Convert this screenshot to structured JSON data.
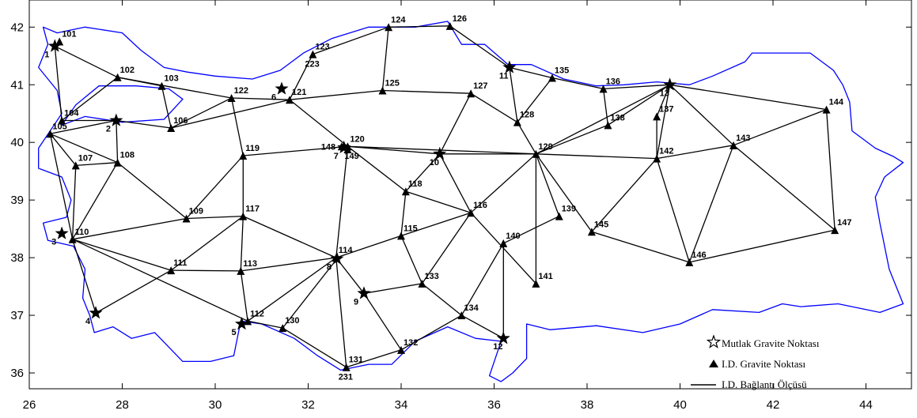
{
  "map": {
    "axes": {
      "x_ticks": [
        26,
        28,
        30,
        32,
        34,
        36,
        38,
        40,
        42,
        44
      ],
      "y_ticks": [
        36,
        37,
        38,
        39,
        40,
        41,
        42
      ],
      "xlim": [
        26,
        45
      ],
      "ylim": [
        35.8,
        42.5
      ]
    },
    "colors": {
      "coastline": "#0000ff",
      "lines": "#000000",
      "frame": "#000000"
    },
    "legend": {
      "absolute_label": "Mutlak Gravite Noktası",
      "relative_label": "I.D. Gravite Noktası",
      "connection_label": "I.D. Bağlantı Ölçüsü"
    },
    "absolute_points": [
      {
        "id": "1",
        "lon": 26.55,
        "lat": 41.67
      },
      {
        "id": "2",
        "lon": 27.87,
        "lat": 40.38
      },
      {
        "id": "3",
        "lon": 26.7,
        "lat": 38.42
      },
      {
        "id": "4",
        "lon": 27.43,
        "lat": 37.04
      },
      {
        "id": "5",
        "lon": 30.57,
        "lat": 36.85
      },
      {
        "id": "6",
        "lon": 31.43,
        "lat": 40.93
      },
      {
        "id": "7",
        "lon": 32.77,
        "lat": 39.91
      },
      {
        "id": "8",
        "lon": 32.62,
        "lat": 37.98
      },
      {
        "id": "9",
        "lon": 33.2,
        "lat": 37.38
      },
      {
        "id": "10",
        "lon": 34.83,
        "lat": 39.8
      },
      {
        "id": "11",
        "lon": 36.33,
        "lat": 41.3
      },
      {
        "id": "12",
        "lon": 36.2,
        "lat": 36.6
      },
      {
        "id": "13",
        "lon": 39.78,
        "lat": 41.0
      }
    ],
    "relative_points": [
      {
        "id": "101",
        "lon": 26.65,
        "lat": 41.75
      },
      {
        "id": "102",
        "lon": 27.9,
        "lat": 41.13
      },
      {
        "id": "103",
        "lon": 28.85,
        "lat": 40.98
      },
      {
        "id": "104",
        "lon": 26.7,
        "lat": 40.38
      },
      {
        "id": "105",
        "lon": 26.45,
        "lat": 40.15
      },
      {
        "id": "106",
        "lon": 29.05,
        "lat": 40.25
      },
      {
        "id": "107",
        "lon": 27.0,
        "lat": 39.6
      },
      {
        "id": "108",
        "lon": 27.9,
        "lat": 39.65
      },
      {
        "id": "109",
        "lon": 29.38,
        "lat": 38.68
      },
      {
        "id": "110",
        "lon": 26.93,
        "lat": 38.32
      },
      {
        "id": "111",
        "lon": 29.05,
        "lat": 37.78
      },
      {
        "id": "112",
        "lon": 30.7,
        "lat": 36.9
      },
      {
        "id": "113",
        "lon": 30.55,
        "lat": 37.77
      },
      {
        "id": "114",
        "lon": 32.6,
        "lat": 38.0
      },
      {
        "id": "115",
        "lon": 34.0,
        "lat": 38.38
      },
      {
        "id": "116",
        "lon": 35.5,
        "lat": 38.78
      },
      {
        "id": "117",
        "lon": 30.6,
        "lat": 38.72
      },
      {
        "id": "118",
        "lon": 34.1,
        "lat": 39.15
      },
      {
        "id": "119",
        "lon": 30.6,
        "lat": 39.77
      },
      {
        "id": "120",
        "lon": 32.85,
        "lat": 39.93
      },
      {
        "id": "121",
        "lon": 31.6,
        "lat": 40.74
      },
      {
        "id": "122",
        "lon": 30.35,
        "lat": 40.77
      },
      {
        "id": "123",
        "lon": 32.1,
        "lat": 41.53
      },
      {
        "id": "124",
        "lon": 33.73,
        "lat": 42.0
      },
      {
        "id": "125",
        "lon": 33.6,
        "lat": 40.9
      },
      {
        "id": "126",
        "lon": 35.05,
        "lat": 42.02
      },
      {
        "id": "127",
        "lon": 35.5,
        "lat": 40.85
      },
      {
        "id": "128",
        "lon": 36.5,
        "lat": 40.35
      },
      {
        "id": "129",
        "lon": 36.9,
        "lat": 39.8
      },
      {
        "id": "130",
        "lon": 31.45,
        "lat": 36.78
      },
      {
        "id": "131",
        "lon": 32.82,
        "lat": 36.1
      },
      {
        "id": "132",
        "lon": 34.0,
        "lat": 36.4
      },
      {
        "id": "133",
        "lon": 34.45,
        "lat": 37.55
      },
      {
        "id": "134",
        "lon": 35.3,
        "lat": 37.0
      },
      {
        "id": "135",
        "lon": 37.25,
        "lat": 41.12
      },
      {
        "id": "136",
        "lon": 38.35,
        "lat": 40.93
      },
      {
        "id": "137",
        "lon": 39.5,
        "lat": 40.45
      },
      {
        "id": "138",
        "lon": 38.45,
        "lat": 40.3
      },
      {
        "id": "139",
        "lon": 37.4,
        "lat": 38.72
      },
      {
        "id": "140",
        "lon": 36.2,
        "lat": 38.25
      },
      {
        "id": "141",
        "lon": 36.9,
        "lat": 37.55
      },
      {
        "id": "142",
        "lon": 39.5,
        "lat": 39.72
      },
      {
        "id": "143",
        "lon": 41.15,
        "lat": 39.95
      },
      {
        "id": "144",
        "lon": 43.15,
        "lat": 40.57
      },
      {
        "id": "145",
        "lon": 38.1,
        "lat": 38.45
      },
      {
        "id": "146",
        "lon": 40.2,
        "lat": 37.92
      },
      {
        "id": "147",
        "lon": 43.33,
        "lat": 38.48
      },
      {
        "id": "148",
        "lon": 32.72,
        "lat": 39.93
      },
      {
        "id": "149",
        "lon": 32.85,
        "lat": 39.88
      },
      {
        "id": "223",
        "lon": 32.1,
        "lat": 41.53
      },
      {
        "id": "231",
        "lon": 32.82,
        "lat": 36.1
      }
    ],
    "connections": [
      [
        "1",
        "102"
      ],
      [
        "1",
        "104"
      ],
      [
        "102",
        "103"
      ],
      [
        "102",
        "104"
      ],
      [
        "102",
        "122"
      ],
      [
        "103",
        "106"
      ],
      [
        "104",
        "2"
      ],
      [
        "2",
        "105"
      ],
      [
        "2",
        "106"
      ],
      [
        "2",
        "108"
      ],
      [
        "105",
        "107"
      ],
      [
        "105",
        "108"
      ],
      [
        "105",
        "110"
      ],
      [
        "106",
        "122"
      ],
      [
        "106",
        "121"
      ],
      [
        "107",
        "108"
      ],
      [
        "107",
        "110"
      ],
      [
        "108",
        "110"
      ],
      [
        "108",
        "109"
      ],
      [
        "109",
        "117"
      ],
      [
        "109",
        "119"
      ],
      [
        "109",
        "110"
      ],
      [
        "110",
        "4"
      ],
      [
        "110",
        "111"
      ],
      [
        "110",
        "112"
      ],
      [
        "111",
        "4"
      ],
      [
        "111",
        "113"
      ],
      [
        "111",
        "117"
      ],
      [
        "113",
        "117"
      ],
      [
        "113",
        "112"
      ],
      [
        "113",
        "114"
      ],
      [
        "117",
        "119"
      ],
      [
        "117",
        "114"
      ],
      [
        "119",
        "122"
      ],
      [
        "119",
        "120"
      ],
      [
        "122",
        "121"
      ],
      [
        "121",
        "123"
      ],
      [
        "121",
        "125"
      ],
      [
        "121",
        "120"
      ],
      [
        "123",
        "124"
      ],
      [
        "124",
        "125"
      ],
      [
        "124",
        "126"
      ],
      [
        "126",
        "11"
      ],
      [
        "125",
        "127"
      ],
      [
        "127",
        "10"
      ],
      [
        "127",
        "128"
      ],
      [
        "128",
        "11"
      ],
      [
        "128",
        "129"
      ],
      [
        "11",
        "135"
      ],
      [
        "135",
        "136"
      ],
      [
        "135",
        "128"
      ],
      [
        "136",
        "13"
      ],
      [
        "136",
        "138"
      ],
      [
        "13",
        "138"
      ],
      [
        "13",
        "129"
      ],
      [
        "13",
        "137"
      ],
      [
        "13",
        "142"
      ],
      [
        "13",
        "143"
      ],
      [
        "13",
        "144"
      ],
      [
        "120",
        "10"
      ],
      [
        "120",
        "129"
      ],
      [
        "120",
        "114"
      ],
      [
        "120",
        "118"
      ],
      [
        "10",
        "129"
      ],
      [
        "10",
        "118"
      ],
      [
        "10",
        "116"
      ],
      [
        "118",
        "115"
      ],
      [
        "118",
        "116"
      ],
      [
        "115",
        "114"
      ],
      [
        "115",
        "116"
      ],
      [
        "115",
        "133"
      ],
      [
        "114",
        "9"
      ],
      [
        "114",
        "112"
      ],
      [
        "114",
        "131"
      ],
      [
        "9",
        "133"
      ],
      [
        "9",
        "132"
      ],
      [
        "133",
        "134"
      ],
      [
        "133",
        "116"
      ],
      [
        "134",
        "12"
      ],
      [
        "134",
        "140"
      ],
      [
        "134",
        "132"
      ],
      [
        "132",
        "131"
      ],
      [
        "131",
        "130"
      ],
      [
        "130",
        "112"
      ],
      [
        "130",
        "8"
      ],
      [
        "116",
        "129"
      ],
      [
        "116",
        "141"
      ],
      [
        "140",
        "139"
      ],
      [
        "140",
        "12"
      ],
      [
        "129",
        "139"
      ],
      [
        "129",
        "142"
      ],
      [
        "129",
        "145"
      ],
      [
        "129",
        "138"
      ],
      [
        "141",
        "129"
      ],
      [
        "145",
        "142"
      ],
      [
        "145",
        "146"
      ],
      [
        "142",
        "146"
      ],
      [
        "142",
        "137"
      ],
      [
        "142",
        "143"
      ],
      [
        "143",
        "146"
      ],
      [
        "143",
        "144"
      ],
      [
        "143",
        "147"
      ],
      [
        "144",
        "147"
      ],
      [
        "146",
        "147"
      ]
    ]
  }
}
